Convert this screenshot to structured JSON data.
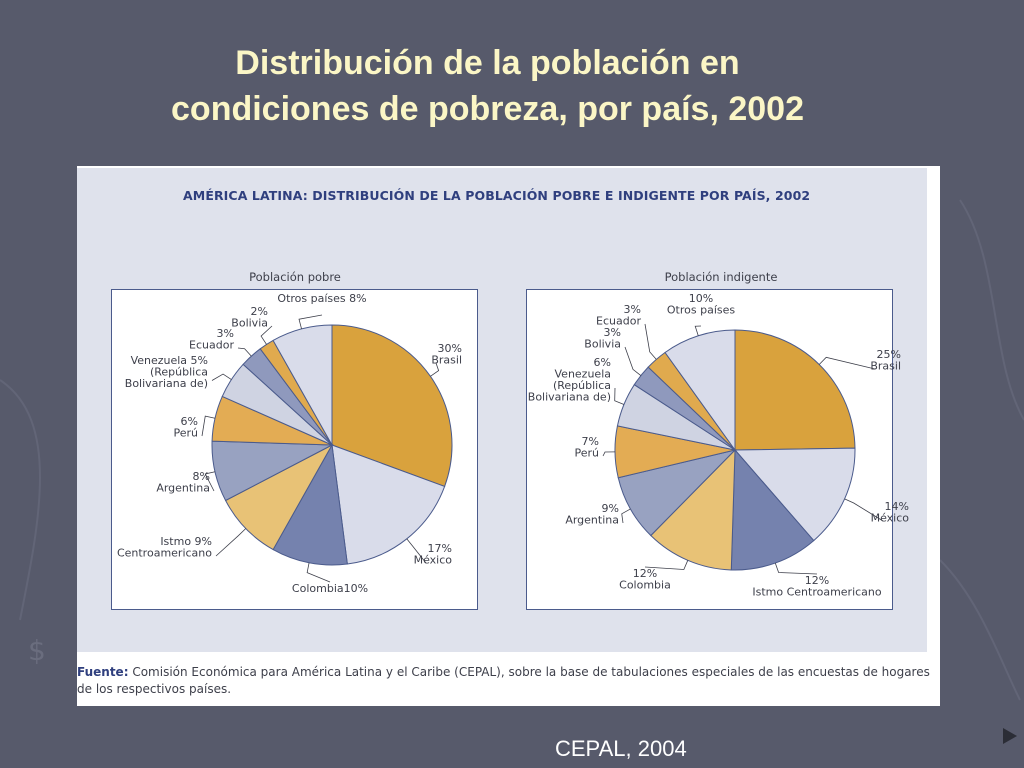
{
  "slide": {
    "title_line1": "Distribución de la población en",
    "title_line2": "condiciones de pobreza, por país, 2002",
    "credit": "CEPAL, 2004"
  },
  "figure": {
    "title": "AMÉRICA LATINA: DISTRIBUCIÓN DE LA POBLACIÓN POBRE E INDIGENTE POR PAÍS, 2002",
    "source_label": "Fuente:",
    "source_text": "Comisión Económica para América Latina y el Caribe (CEPAL), sobre la base de tabulaciones especiales de las encuestas de hogares de los respectivos países."
  },
  "colors": {
    "background": "#575a6b",
    "title": "#fbf6c6",
    "gold": "#d9a23d",
    "light_gray": "#d9dcea",
    "slate": "#7582ae",
    "sand": "#e8c276",
    "gray_blue": "#98a2c1",
    "pale": "#cfd3e2"
  },
  "chart_data": [
    {
      "type": "pie",
      "title": "Población pobre",
      "slices": [
        {
          "label": "Brasil",
          "value": 30,
          "value_label": "30%",
          "color": "#d9a23d"
        },
        {
          "label": "México",
          "value": 17,
          "value_label": "17%",
          "color": "#d9dcea"
        },
        {
          "label": "Colombia",
          "value": 10,
          "value_label": "10%",
          "color": "#7582ae"
        },
        {
          "label": "Istmo Centroamericano",
          "value": 9,
          "value_label": "9%",
          "color": "#e8c276"
        },
        {
          "label": "Argentina",
          "value": 8,
          "value_label": "8%",
          "color": "#98a2c1"
        },
        {
          "label": "Perú",
          "value": 6,
          "value_label": "6%",
          "color": "#e3ac54"
        },
        {
          "label": "Venezuela (República Bolivariana de)",
          "value": 5,
          "value_label": "5%",
          "color": "#cfd3e2"
        },
        {
          "label": "Ecuador",
          "value": 3,
          "value_label": "3%",
          "color": "#8f99bd"
        },
        {
          "label": "Bolivia",
          "value": 2,
          "value_label": "2%",
          "color": "#e0aa4e"
        },
        {
          "label": "Otros países",
          "value": 8,
          "value_label": "8%",
          "color": "#d9dcea"
        }
      ]
    },
    {
      "type": "pie",
      "title": "Población indigente",
      "slices": [
        {
          "label": "Brasil",
          "value": 25,
          "value_label": "25%",
          "color": "#d9a23d"
        },
        {
          "label": "México",
          "value": 14,
          "value_label": "14%",
          "color": "#d9dcea"
        },
        {
          "label": "Istmo Centroamericano",
          "value": 12,
          "value_label": "12%",
          "color": "#7582ae"
        },
        {
          "label": "Colombia",
          "value": 12,
          "value_label": "12%",
          "color": "#e8c276"
        },
        {
          "label": "Argentina",
          "value": 9,
          "value_label": "9%",
          "color": "#98a2c1"
        },
        {
          "label": "Perú",
          "value": 7,
          "value_label": "7%",
          "color": "#e3ac54"
        },
        {
          "label": "Venezuela (República Bolivariana de)",
          "value": 6,
          "value_label": "6%",
          "color": "#cfd3e2"
        },
        {
          "label": "Bolivia",
          "value": 3,
          "value_label": "3%",
          "color": "#8f99bd"
        },
        {
          "label": "Ecuador",
          "value": 3,
          "value_label": "3%",
          "color": "#e0aa4e"
        },
        {
          "label": "Otros países",
          "value": 10,
          "value_label": "10%",
          "color": "#d9dcea"
        }
      ]
    }
  ]
}
